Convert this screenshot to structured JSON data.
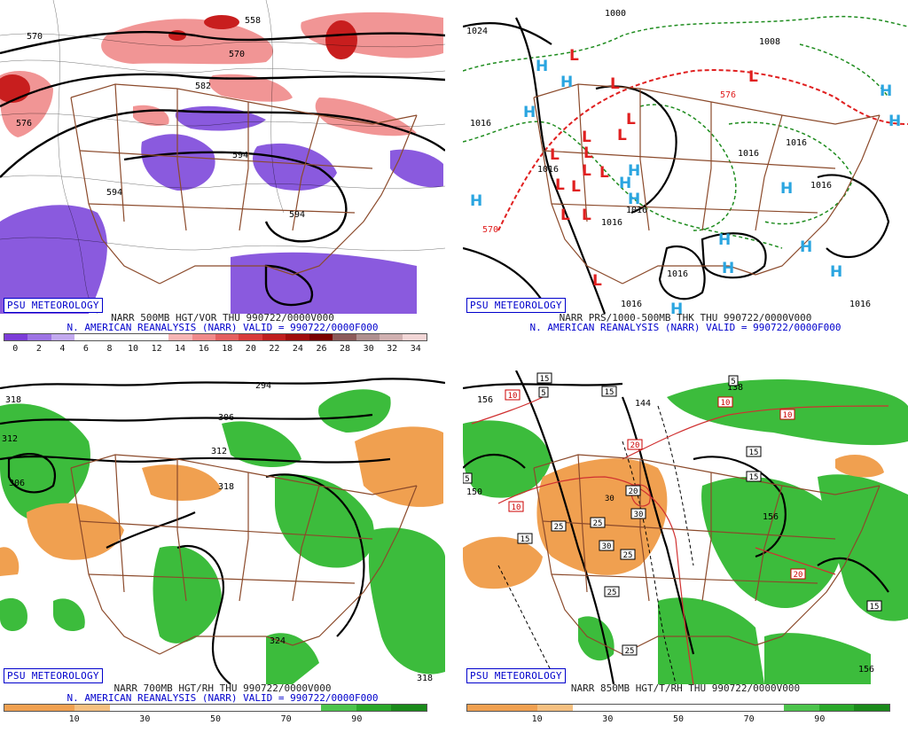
{
  "panels": [
    {
      "id": "p1",
      "brand": "PSU METEOROLOGY",
      "line1": "NARR 500MB HGT/VOR THU 990722/0000V000",
      "line2": "N. AMERICAN REANALYSIS (NARR) VALID = 990722/0000F000",
      "colorbar": [
        "#7c3cd8",
        "#9d73e4",
        "#c2a9ef",
        "#ffffff",
        "#ffffff",
        "#ffffff",
        "#ffffff",
        "#f7b5b5",
        "#f08a8a",
        "#e45f5f",
        "#d83b3b",
        "#bf1f1f",
        "#a00d0d",
        "#7a0000",
        "#8c5a5a",
        "#b09090",
        "#d0b0b0",
        "#f2d6d6"
      ],
      "ticks": [
        "0",
        "2",
        "4",
        "6",
        "8",
        "10",
        "12",
        "14",
        "16",
        "18",
        "20",
        "22",
        "24",
        "26",
        "28",
        "30",
        "32",
        "34"
      ],
      "contour_labels": [
        "558",
        "570",
        "582",
        "594",
        "594",
        "576",
        "594",
        "570"
      ]
    },
    {
      "id": "p2",
      "brand": "PSU METEOROLOGY",
      "line1": "NARR PRS/1000-500MB THK THU 990722/0000V000",
      "line2": "N. AMERICAN REANALYSIS (NARR) VALID = 990722/0000F000",
      "contour_labels": [
        "1000",
        "1024",
        "1016",
        "1008",
        "1016",
        "1016",
        "1016",
        "1016",
        "1016",
        "1016",
        "1016",
        "1016",
        "1016",
        "570",
        "576"
      ],
      "high_label": "H",
      "low_label": "L",
      "colors": {
        "high": "#2aa5e0",
        "low": "#e02020"
      }
    },
    {
      "id": "p3",
      "brand": "PSU METEOROLOGY",
      "line1": "NARR 700MB HGT/RH THU 990722/0000V000",
      "line2": "N. AMERICAN REANALYSIS (NARR) VALID = 990722/0000F000",
      "colorbar": [
        "#f0a050",
        "#f0a050",
        "#f5c080",
        "#ffffff",
        "#ffffff",
        "#ffffff",
        "#ffffff",
        "#ffffff",
        "#ffffff",
        "#4cc44c",
        "#2aa82a",
        "#1a8a1a"
      ],
      "ticks": [
        "10",
        "30",
        "50",
        "70",
        "90"
      ],
      "contour_labels": [
        "318",
        "312",
        "306",
        "306",
        "312",
        "318",
        "324",
        "318",
        "294"
      ]
    },
    {
      "id": "p4",
      "brand": "PSU METEOROLOGY",
      "line1": "NARR 850MB HGT/T/RH THU 990722/0000V000",
      "line2": "",
      "colorbar": [
        "#f0a050",
        "#f0a050",
        "#f5c080",
        "#ffffff",
        "#ffffff",
        "#ffffff",
        "#ffffff",
        "#ffffff",
        "#ffffff",
        "#4cc44c",
        "#2aa82a",
        "#1a8a1a"
      ],
      "ticks": [
        "10",
        "30",
        "50",
        "70",
        "90"
      ],
      "contour_labels": [
        "156",
        "150",
        "144",
        "138",
        "156",
        "156",
        "10",
        "10",
        "10",
        "10",
        "15",
        "15",
        "15",
        "15",
        "15",
        "15",
        "20",
        "20",
        "20",
        "25",
        "25",
        "25",
        "25",
        "25",
        "30",
        "30",
        "30",
        "5",
        "5",
        "5"
      ]
    }
  ]
}
